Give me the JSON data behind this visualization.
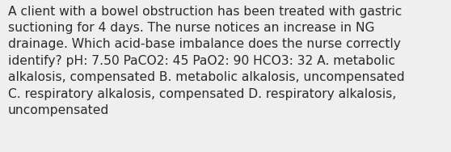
{
  "lines": [
    "A client with a bowel obstruction has been treated with gastric",
    "suctioning for 4 days. The nurse notices an increase in NG",
    "drainage. Which acid-base imbalance does the nurse correctly",
    "identify? pH: 7.50 PaCO2: 45 PaO2: 90 HCO3: 32 A. metabolic",
    "alkalosis, compensated B. metabolic alkalosis, uncompensated",
    "C. respiratory alkalosis, compensated D. respiratory alkalosis,",
    "uncompensated"
  ],
  "background_color": "#efefef",
  "text_color": "#2b2b2b",
  "font_size": 11.2,
  "fig_width": 5.58,
  "fig_height": 1.88
}
